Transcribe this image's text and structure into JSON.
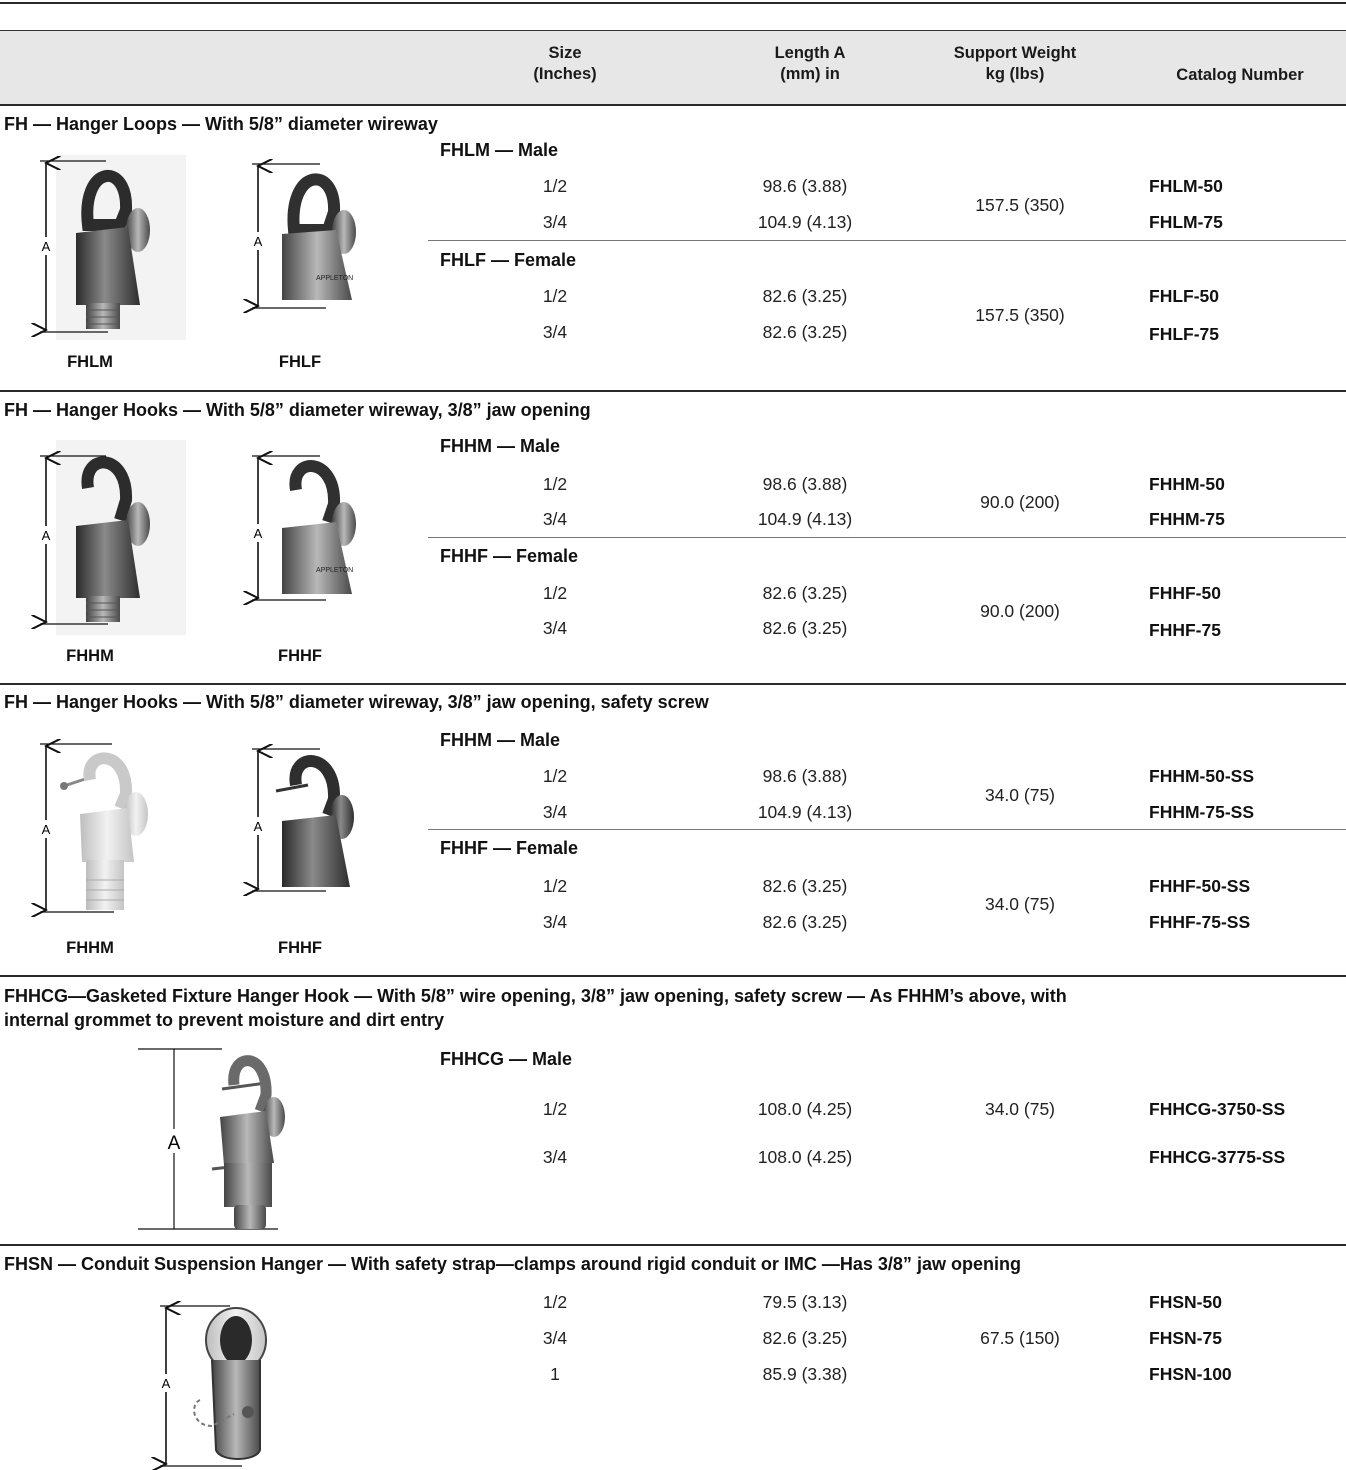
{
  "header": {
    "size": [
      "Size",
      "(Inches)"
    ],
    "length": [
      "Length A",
      "(mm) in"
    ],
    "weight": [
      "Support Weight",
      "kg (lbs)"
    ],
    "catalog": "Catalog Number"
  },
  "dimension_label": "A",
  "sections": [
    {
      "title": "FH — Hanger Loops — With 5/8” diameter wireway",
      "captions": [
        "FHLM",
        "FHLF"
      ],
      "groups": [
        {
          "label": "FHLM — Male",
          "weight": "157.5 (350)",
          "rows": [
            {
              "size": "1/2",
              "length": "98.6 (3.88)",
              "catalog": "FHLM-50"
            },
            {
              "size": "3/4",
              "length": "104.9 (4.13)",
              "catalog": "FHLM-75"
            }
          ]
        },
        {
          "label": "FHLF — Female",
          "weight": "157.5 (350)",
          "rows": [
            {
              "size": "1/2",
              "length": "82.6 (3.25)",
              "catalog": "FHLF-50"
            },
            {
              "size": "3/4",
              "length": "82.6 (3.25)",
              "catalog": "FHLF-75"
            }
          ]
        }
      ]
    },
    {
      "title": "FH — Hanger Hooks — With 5/8” diameter wireway, 3/8” jaw opening",
      "captions": [
        "FHHM",
        "FHHF"
      ],
      "groups": [
        {
          "label": "FHHM — Male",
          "weight": "90.0 (200)",
          "rows": [
            {
              "size": "1/2",
              "length": "98.6 (3.88)",
              "catalog": "FHHM-50"
            },
            {
              "size": "3/4",
              "length": "104.9 (4.13)",
              "catalog": "FHHM-75"
            }
          ]
        },
        {
          "label": "FHHF — Female",
          "weight": "90.0 (200)",
          "rows": [
            {
              "size": "1/2",
              "length": "82.6 (3.25)",
              "catalog": "FHHF-50"
            },
            {
              "size": "3/4",
              "length": "82.6 (3.25)",
              "catalog": "FHHF-75"
            }
          ]
        }
      ]
    },
    {
      "title": "FH — Hanger Hooks — With 5/8” diameter wireway, 3/8” jaw opening, safety screw",
      "captions": [
        "FHHM",
        "FHHF"
      ],
      "groups": [
        {
          "label": "FHHM — Male",
          "weight": "34.0 (75)",
          "rows": [
            {
              "size": "1/2",
              "length": "98.6 (3.88)",
              "catalog": "FHHM-50-SS"
            },
            {
              "size": "3/4",
              "length": "104.9 (4.13)",
              "catalog": "FHHM-75-SS"
            }
          ]
        },
        {
          "label": "FHHF — Female",
          "weight": "34.0 (75)",
          "rows": [
            {
              "size": "1/2",
              "length": "82.6 (3.25)",
              "catalog": "FHHF-50-SS"
            },
            {
              "size": "3/4",
              "length": "82.6 (3.25)",
              "catalog": "FHHF-75-SS"
            }
          ]
        }
      ]
    },
    {
      "title_line1": "FHHCG—Gasketed Fixture Hanger Hook — With 5/8” wire opening, 3/8” jaw opening, safety screw — As FHHM’s above, with",
      "title_line2": "internal grommet to prevent moisture and dirt entry",
      "groups": [
        {
          "label": "FHHCG — Male",
          "weight": "34.0 (75)",
          "rows": [
            {
              "size": "1/2",
              "length": "108.0 (4.25)",
              "catalog": "FHHCG-3750-SS"
            },
            {
              "size": "3/4",
              "length": "108.0 (4.25)",
              "catalog": "FHHCG-3775-SS"
            }
          ]
        }
      ]
    },
    {
      "title": "FHSN — Conduit Suspension Hanger — With safety strap—clamps around rigid conduit or IMC —Has 3/8” jaw opening",
      "weight": "67.5 (150)",
      "rows": [
        {
          "size": "1/2",
          "length": "79.5 (3.13)",
          "catalog": "FHSN-50"
        },
        {
          "size": "3/4",
          "length": "82.6 (3.25)",
          "catalog": "FHSN-75"
        },
        {
          "size": "1",
          "length": "85.9 (3.38)",
          "catalog": "FHSN-100"
        }
      ]
    }
  ]
}
